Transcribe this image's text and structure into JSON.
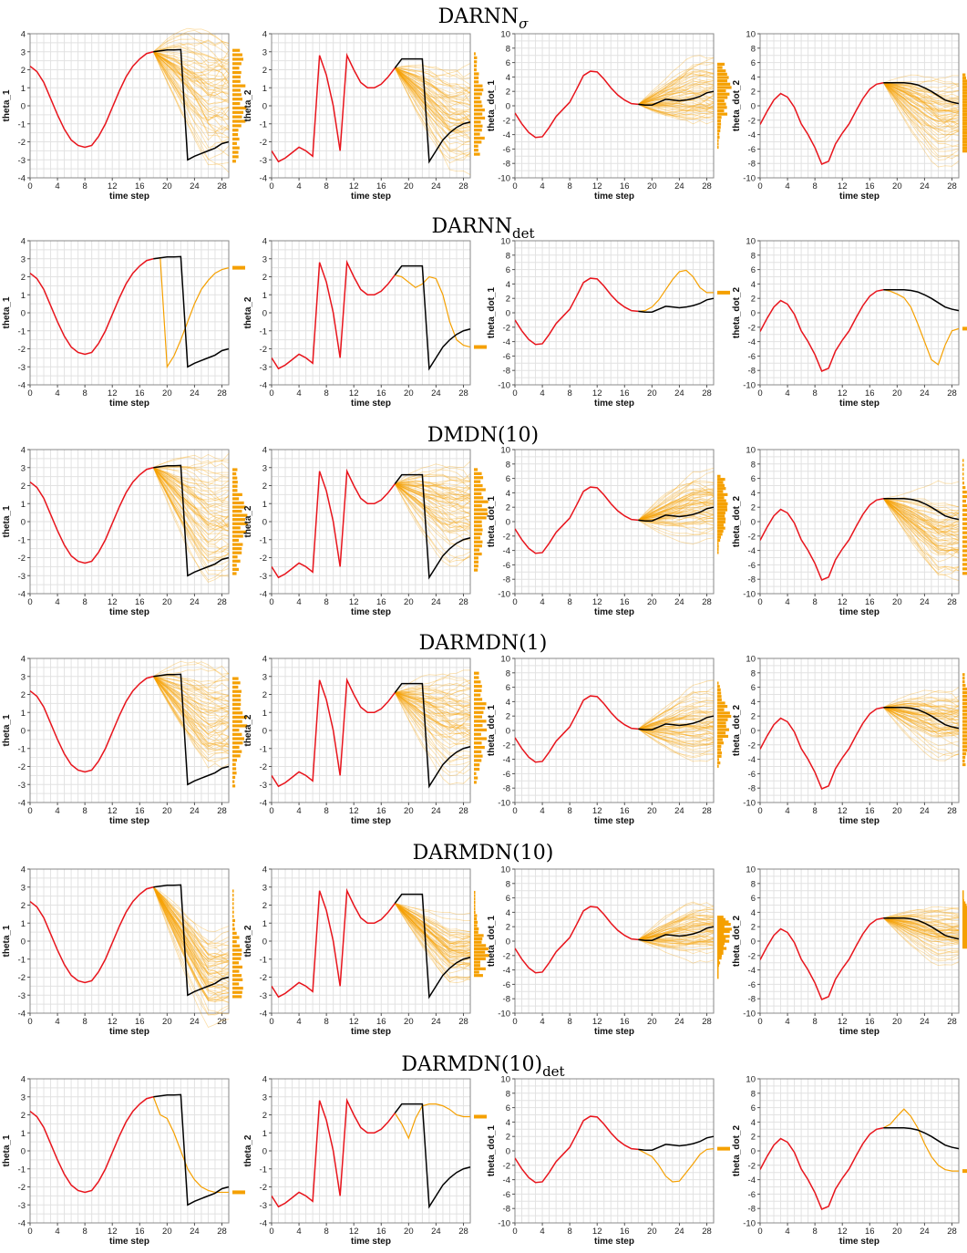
{
  "rows": [
    {
      "name": "DARNN",
      "sub": "σ",
      "sub_style": "italic"
    },
    {
      "name": "DARNN",
      "sub": "det",
      "sub_style": "normal"
    },
    {
      "name": "DMDN(10)",
      "sub": "",
      "sub_style": "normal"
    },
    {
      "name": "DARMDN(1)",
      "sub": "",
      "sub_style": "normal"
    },
    {
      "name": "DARMDN(10)",
      "sub": "",
      "sub_style": "normal"
    },
    {
      "name": "DARMDN(10)",
      "sub": "det",
      "sub_style": "normal"
    }
  ],
  "colors": {
    "history": "#e8141c",
    "truth": "#000000",
    "samples": "#f5a000",
    "grid": "#e2e2e2"
  },
  "chart_data": {
    "type": "line",
    "xlabel": "time step",
    "xlim": [
      0,
      29
    ],
    "xticks": [
      0,
      4,
      8,
      12,
      16,
      20,
      24,
      28
    ],
    "variables": [
      {
        "ylabel": "theta_1",
        "ylim": [
          -4,
          4
        ],
        "yticks": [
          -4,
          -3,
          -2,
          -1,
          0,
          1,
          2,
          3,
          4
        ]
      },
      {
        "ylabel": "theta_2",
        "ylim": [
          -4,
          4
        ],
        "yticks": [
          -4,
          -3,
          -2,
          -1,
          0,
          1,
          2,
          3,
          4
        ]
      },
      {
        "ylabel": "theta_dot_1",
        "ylim": [
          -10,
          10
        ],
        "yticks": [
          -10,
          -8,
          -6,
          -4,
          -2,
          0,
          2,
          4,
          6,
          8,
          10
        ]
      },
      {
        "ylabel": "theta_dot_2",
        "ylim": [
          -10,
          10
        ],
        "yticks": [
          -10,
          -8,
          -6,
          -4,
          -2,
          0,
          2,
          4,
          6,
          8,
          10
        ]
      }
    ],
    "history_x": [
      0,
      1,
      2,
      3,
      4,
      5,
      6,
      7,
      8,
      9,
      10,
      11,
      12,
      13,
      14,
      15,
      16,
      17,
      18
    ],
    "truth_x": [
      18,
      19,
      20,
      21,
      22,
      23,
      24,
      25,
      26,
      27,
      28,
      29
    ],
    "history": [
      [
        2.2,
        1.9,
        1.3,
        0.4,
        -0.5,
        -1.3,
        -1.9,
        -2.2,
        -2.3,
        -2.2,
        -1.7,
        -1.0,
        -0.1,
        0.8,
        1.6,
        2.2,
        2.6,
        2.9,
        3.0
      ],
      [
        -2.5,
        -3.1,
        -2.9,
        -2.6,
        -2.3,
        -2.5,
        -2.8,
        2.8,
        1.7,
        0.0,
        -2.5,
        2.8,
        2.0,
        1.3,
        1.0,
        1.0,
        1.2,
        1.6,
        2.1
      ],
      [
        -1.0,
        -2.5,
        -3.7,
        -4.4,
        -4.3,
        -3.0,
        -1.5,
        -0.5,
        0.5,
        2.3,
        4.2,
        4.8,
        4.7,
        3.7,
        2.5,
        1.5,
        0.8,
        0.3,
        0.2
      ],
      [
        -2.6,
        -0.8,
        0.8,
        1.7,
        1.2,
        -0.2,
        -2.5,
        -4.0,
        -5.8,
        -8.1,
        -7.7,
        -5.3,
        -3.8,
        -2.5,
        -0.7,
        1.0,
        2.3,
        3.0,
        3.2
      ]
    ],
    "truth": [
      [
        3.0,
        3.05,
        3.1,
        3.1,
        3.12,
        -3.0,
        -2.8,
        -2.65,
        -2.5,
        -2.35,
        -2.1,
        -2.0
      ],
      [
        2.1,
        2.6,
        2.6,
        2.6,
        2.6,
        -3.1,
        -2.5,
        -1.9,
        -1.5,
        -1.2,
        -1.0,
        -0.9
      ],
      [
        0.2,
        0.1,
        0.1,
        0.5,
        0.9,
        0.8,
        0.7,
        0.8,
        1.0,
        1.3,
        1.8,
        2.0
      ],
      [
        3.2,
        3.2,
        3.2,
        3.2,
        3.1,
        2.9,
        2.5,
        2.0,
        1.4,
        0.8,
        0.5,
        0.3
      ]
    ],
    "sample_spread": [
      [
        {
          "center": 0.5,
          "spread": 2.6,
          "hist_range": [
            -3.2,
            3.2
          ]
        },
        {
          "center": -0.5,
          "spread": 1.8,
          "hist_range": [
            -2.8,
            3.0
          ]
        },
        {
          "center": 2.0,
          "spread": 3.5,
          "hist_range": [
            -6.0,
            6.0
          ]
        },
        {
          "center": -1.5,
          "spread": 4.0,
          "hist_range": [
            -6.5,
            4.5
          ]
        }
      ],
      [
        {
          "center": 2.5,
          "spread": 0.0,
          "hist_range": [
            2.5,
            2.5
          ]
        },
        {
          "center": -1.9,
          "spread": 0.0,
          "hist_range": [
            -1.9,
            -1.9
          ]
        },
        {
          "center": 2.8,
          "spread": 0.0,
          "hist_range": [
            2.8,
            2.8
          ]
        },
        {
          "center": -2.2,
          "spread": 0.0,
          "hist_range": [
            -2.2,
            -2.2
          ]
        }
      ],
      [
        {
          "center": 0.0,
          "spread": 2.2,
          "hist_range": [
            -3.0,
            3.0
          ]
        },
        {
          "center": 0.5,
          "spread": 2.0,
          "hist_range": [
            -2.8,
            3.0
          ]
        },
        {
          "center": 2.5,
          "spread": 3.0,
          "hist_range": [
            -4.5,
            6.5
          ]
        },
        {
          "center": -2.0,
          "spread": 4.0,
          "hist_range": [
            -7.5,
            8.8
          ]
        }
      ],
      [
        {
          "center": 0.5,
          "spread": 2.0,
          "hist_range": [
            -3.2,
            3.0
          ]
        },
        {
          "center": 0.5,
          "spread": 2.0,
          "hist_range": [
            -3.0,
            3.3
          ]
        },
        {
          "center": 0.8,
          "spread": 3.0,
          "hist_range": [
            -5.2,
            6.8
          ]
        },
        {
          "center": 1.0,
          "spread": 3.5,
          "hist_range": [
            -5.0,
            8.0
          ]
        }
      ],
      [
        {
          "center": -1.8,
          "spread": 1.6,
          "hist_range": [
            -3.2,
            2.9
          ]
        },
        {
          "center": -0.7,
          "spread": 1.2,
          "hist_range": [
            -2.0,
            2.8
          ]
        },
        {
          "center": 1.5,
          "spread": 2.5,
          "hist_range": [
            -5.2,
            3.5
          ]
        },
        {
          "center": 1.0,
          "spread": 2.5,
          "hist_range": [
            -1.0,
            7.0
          ]
        }
      ],
      [
        {
          "center": -2.3,
          "spread": 0.0,
          "hist_range": [
            -2.3,
            -2.3
          ]
        },
        {
          "center": 1.9,
          "spread": 0.0,
          "hist_range": [
            1.9,
            1.9
          ]
        },
        {
          "center": 0.3,
          "spread": 0.0,
          "hist_range": [
            0.3,
            0.3
          ]
        },
        {
          "center": -2.8,
          "spread": 0.0,
          "hist_range": [
            -2.8,
            -2.8
          ]
        }
      ]
    ],
    "deterministic_predictions": {
      "1": [
        [
          3.0,
          3.05,
          -3.0,
          -2.4,
          -1.5,
          -0.5,
          0.5,
          1.3,
          1.8,
          2.2,
          2.4,
          2.5
        ],
        [
          2.1,
          2.0,
          1.7,
          1.4,
          1.6,
          2.0,
          1.9,
          1.0,
          -0.5,
          -1.5,
          -1.8,
          -1.9
        ],
        [
          0.2,
          0.3,
          0.8,
          1.8,
          3.2,
          4.6,
          5.7,
          5.9,
          5.0,
          3.5,
          2.8,
          2.8
        ],
        [
          3.2,
          3.0,
          2.6,
          2.1,
          0.8,
          -1.5,
          -4.0,
          -6.5,
          -7.2,
          -4.5,
          -2.5,
          -2.2
        ]
      ],
      "5": [
        [
          3.0,
          2.0,
          1.8,
          1.0,
          0.0,
          -1.0,
          -1.6,
          -2.0,
          -2.2,
          -2.3,
          -2.3,
          -2.3
        ],
        [
          2.1,
          1.5,
          0.7,
          1.8,
          2.5,
          2.6,
          2.6,
          2.5,
          2.3,
          2.0,
          1.9,
          1.9
        ],
        [
          0.2,
          -0.3,
          -0.8,
          -2.0,
          -3.5,
          -4.3,
          -4.2,
          -3.0,
          -1.8,
          -0.5,
          0.2,
          0.3
        ],
        [
          3.2,
          3.7,
          4.8,
          5.8,
          4.8,
          3.2,
          1.0,
          -0.8,
          -2.0,
          -2.6,
          -2.8,
          -2.8
        ]
      ]
    }
  }
}
